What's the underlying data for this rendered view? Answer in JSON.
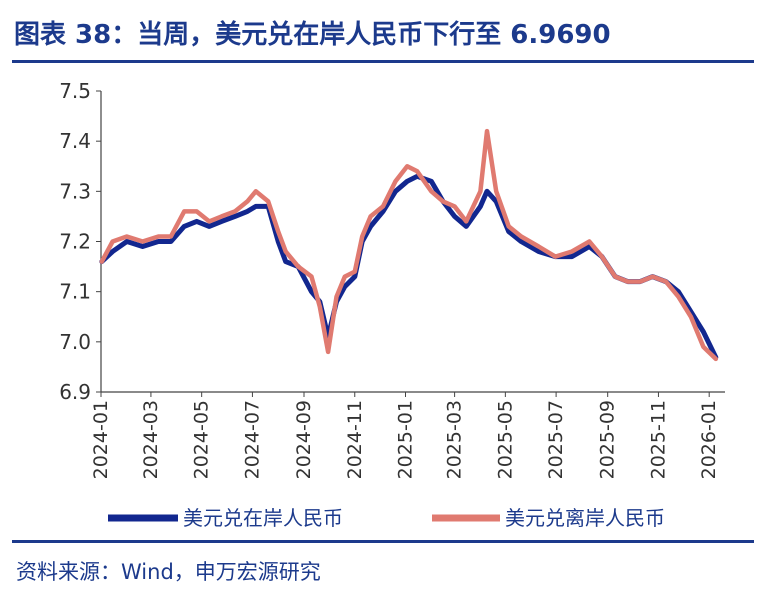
{
  "header": {
    "title": "图表 38：当周，美元兑在岸人民币下行至 6.9690"
  },
  "footer": {
    "source": "资料来源：Wind，申万宏源研究"
  },
  "colors": {
    "onshore": "#12278f",
    "offshore": "#e07a70",
    "accent": "#1c3a8c"
  },
  "chart_data": {
    "type": "line",
    "title": "",
    "xlabel": "",
    "ylabel": "",
    "ylim": [
      6.9,
      7.5
    ],
    "yticks": [
      "7.5",
      "7.4",
      "7.3",
      "7.2",
      "7.1",
      "7.0",
      "6.9"
    ],
    "xticks": [
      "2024-01",
      "2024-03",
      "2024-05",
      "2024-07",
      "2024-09",
      "2024-11",
      "2025-01",
      "2025-03",
      "2025-05",
      "2025-07",
      "2025-09",
      "2025-11",
      "2026-01"
    ],
    "grid": false,
    "legend": "bottom",
    "x": [
      "2024-01-02",
      "2024-01-15",
      "2024-02-01",
      "2024-02-20",
      "2024-03-10",
      "2024-03-25",
      "2024-04-10",
      "2024-04-25",
      "2024-05-10",
      "2024-05-25",
      "2024-06-10",
      "2024-06-25",
      "2024-07-05",
      "2024-07-20",
      "2024-08-01",
      "2024-08-10",
      "2024-08-25",
      "2024-09-10",
      "2024-09-20",
      "2024-09-30",
      "2024-10-10",
      "2024-10-20",
      "2024-11-01",
      "2024-11-10",
      "2024-11-20",
      "2024-12-05",
      "2024-12-20",
      "2025-01-03",
      "2025-01-15",
      "2025-02-01",
      "2025-02-15",
      "2025-03-01",
      "2025-03-15",
      "2025-04-01",
      "2025-04-09",
      "2025-04-20",
      "2025-05-05",
      "2025-05-20",
      "2025-06-10",
      "2025-06-30",
      "2025-07-20",
      "2025-08-10",
      "2025-08-25",
      "2025-09-10",
      "2025-09-25",
      "2025-10-10",
      "2025-10-25",
      "2025-11-10",
      "2025-11-25",
      "2025-12-10",
      "2025-12-25",
      "2026-01-09"
    ],
    "series": [
      {
        "name": "美元兑在岸人民币",
        "values": [
          7.16,
          7.18,
          7.2,
          7.19,
          7.2,
          7.2,
          7.23,
          7.24,
          7.23,
          7.24,
          7.25,
          7.26,
          7.27,
          7.27,
          7.2,
          7.16,
          7.15,
          7.1,
          7.08,
          7.01,
          7.08,
          7.11,
          7.13,
          7.2,
          7.23,
          7.26,
          7.3,
          7.32,
          7.33,
          7.32,
          7.28,
          7.25,
          7.23,
          7.27,
          7.3,
          7.28,
          7.22,
          7.2,
          7.18,
          7.17,
          7.17,
          7.19,
          7.17,
          7.13,
          7.12,
          7.12,
          7.13,
          7.12,
          7.1,
          7.06,
          7.02,
          6.969
        ]
      },
      {
        "name": "美元兑离岸人民币",
        "values": [
          7.16,
          7.2,
          7.21,
          7.2,
          7.21,
          7.21,
          7.26,
          7.26,
          7.24,
          7.25,
          7.26,
          7.28,
          7.3,
          7.28,
          7.22,
          7.18,
          7.15,
          7.13,
          7.07,
          6.98,
          7.09,
          7.13,
          7.14,
          7.21,
          7.25,
          7.27,
          7.32,
          7.35,
          7.34,
          7.3,
          7.28,
          7.27,
          7.24,
          7.3,
          7.42,
          7.3,
          7.23,
          7.21,
          7.19,
          7.17,
          7.18,
          7.2,
          7.17,
          7.13,
          7.12,
          7.12,
          7.13,
          7.12,
          7.09,
          7.05,
          6.99,
          6.966
        ]
      }
    ]
  },
  "legend": {
    "items": [
      "美元兑在岸人民币",
      "美元兑离岸人民币"
    ]
  }
}
